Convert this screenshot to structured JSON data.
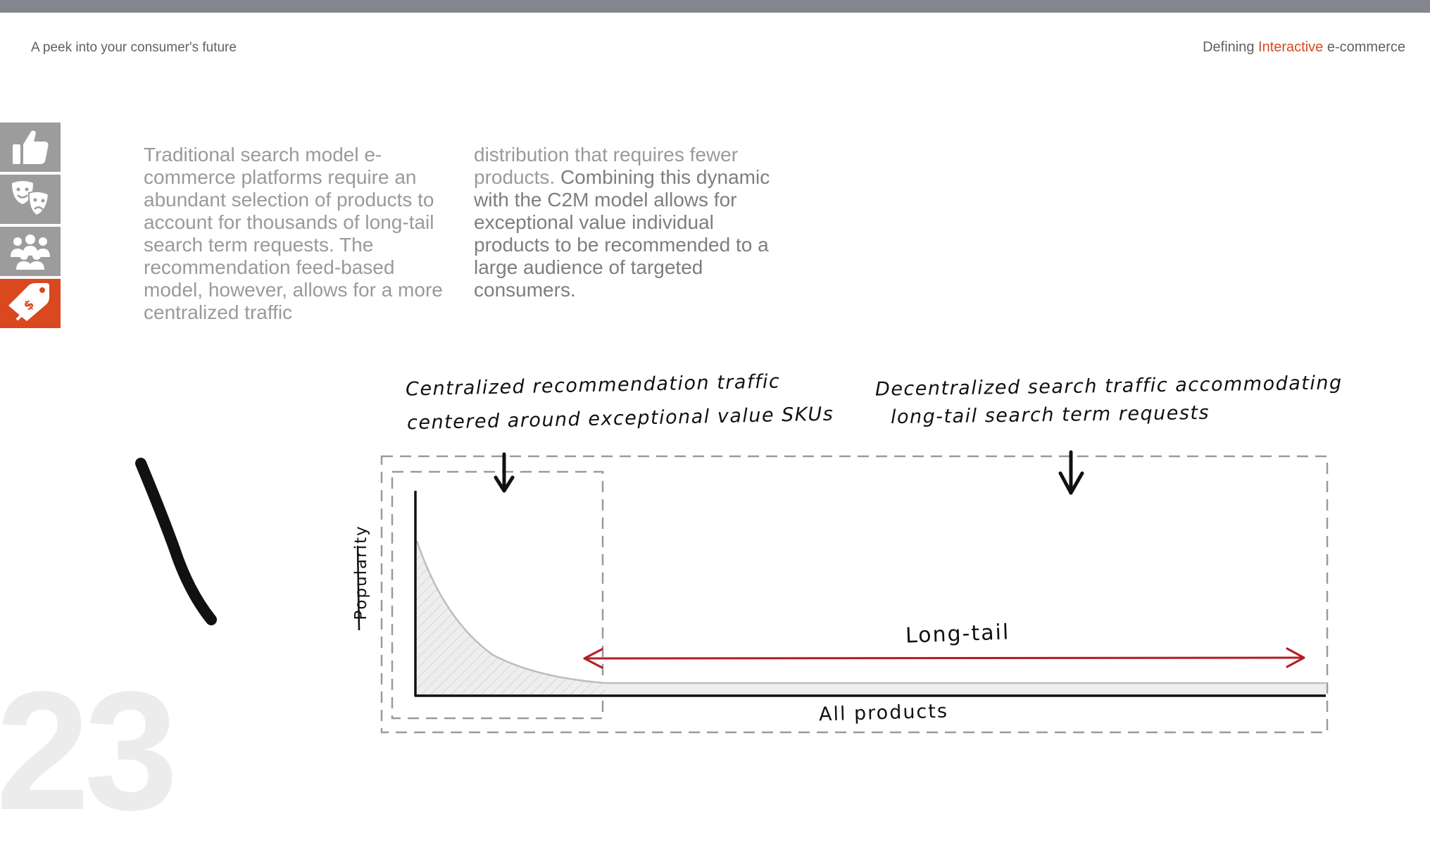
{
  "header": {
    "left_title": "A peek into your consumer's future",
    "right_prefix": "Defining ",
    "right_accent": "Interactive",
    "right_suffix": " e-commerce",
    "accent_color": "#d9481f"
  },
  "nav": {
    "items": [
      {
        "icon": "thumbs-up-icon",
        "active": false
      },
      {
        "icon": "theater-masks-icon",
        "active": false
      },
      {
        "icon": "people-group-icon",
        "active": false
      },
      {
        "icon": "price-tag-icon",
        "active": true
      }
    ]
  },
  "body": {
    "col1_text": "Traditional search model e-commerce platforms require an abundant selection of products to account for thousands of long-tail search term requests. The recommendation feed-based model, however, allows for a more centralized traffic",
    "col2_text_light": "distribution that requires fewer products. ",
    "col2_text_bold": "Combining this dynamic with the C2M model allows for exceptional value individual products to be recommended to a large audience of targeted consumers."
  },
  "diagram": {
    "annotation_left_line1": "Centralized recommendation traffic",
    "annotation_left_line2": "centered around exceptional value SKUs",
    "annotation_right_line1": "Decentralized search traffic accommodating",
    "annotation_right_line2": "long-tail search term requests",
    "long_tail_label": "Long-tail",
    "x_axis_label": "All products",
    "y_axis_label": "Popularity",
    "arrow_color": "#b21e23"
  },
  "page_number": "23"
}
